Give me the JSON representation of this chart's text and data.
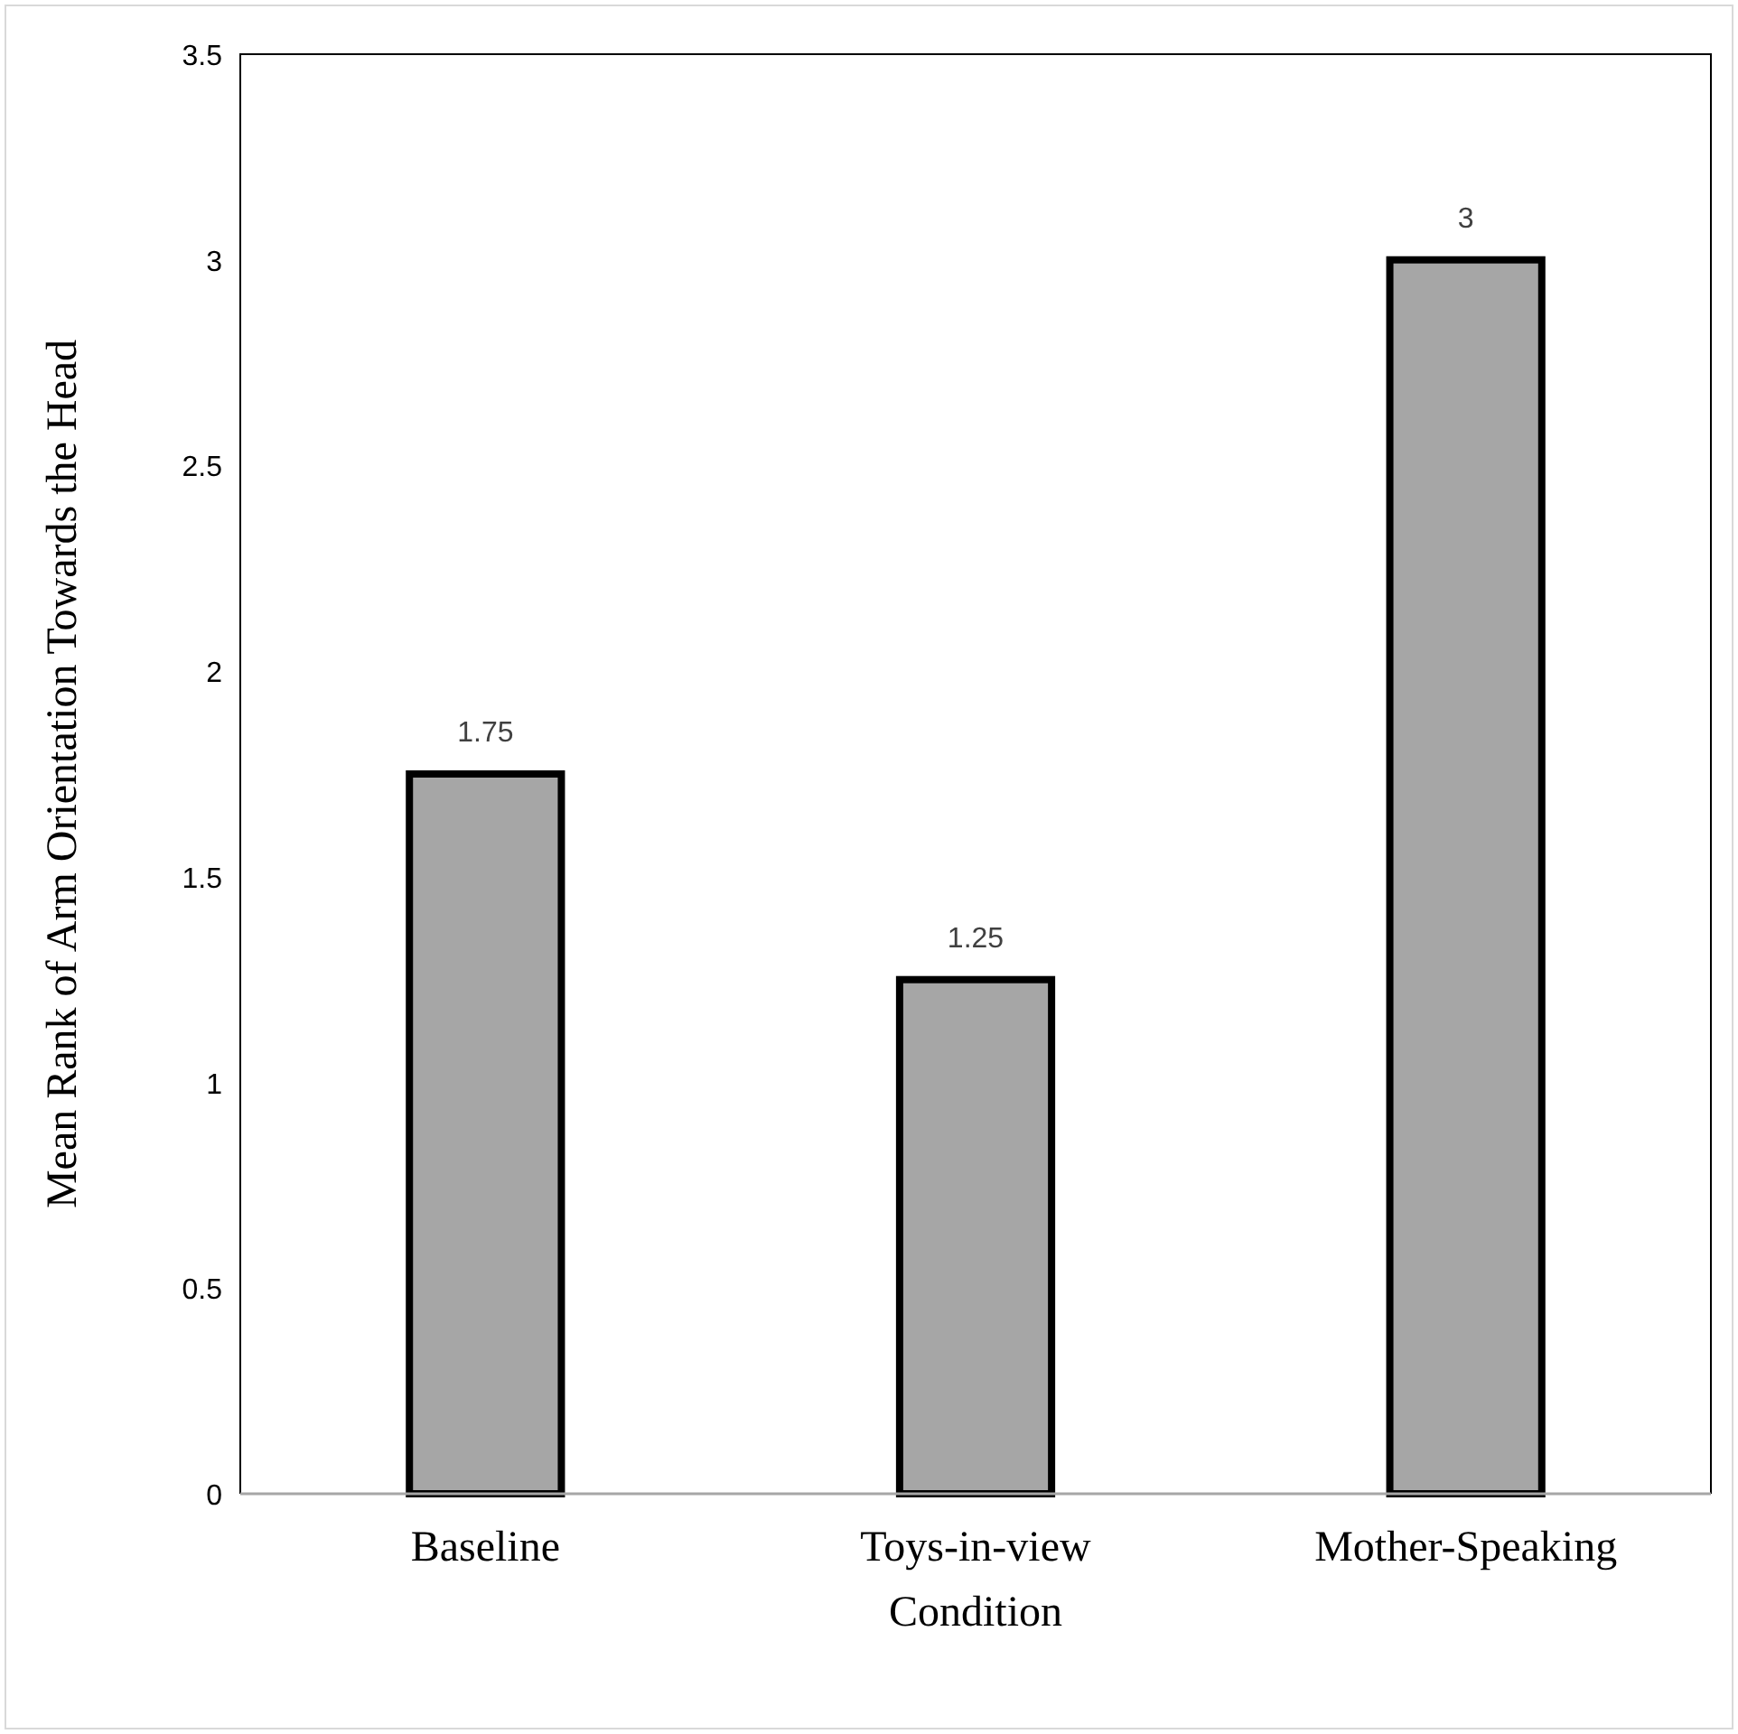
{
  "chart_data": {
    "type": "bar",
    "xlabel": "Condition",
    "ylabel": "Mean Rank of Arm Orientation Towards the Head",
    "categories": [
      "Baseline",
      "Toys-in-view",
      "Mother-Speaking"
    ],
    "values": [
      1.75,
      1.25,
      3
    ],
    "color": "#a6a6a6",
    "ylim": [
      0,
      3.5
    ],
    "yticks": [
      0,
      0.5,
      1,
      1.5,
      2,
      2.5,
      3,
      3.5
    ],
    "data_labels": true
  }
}
